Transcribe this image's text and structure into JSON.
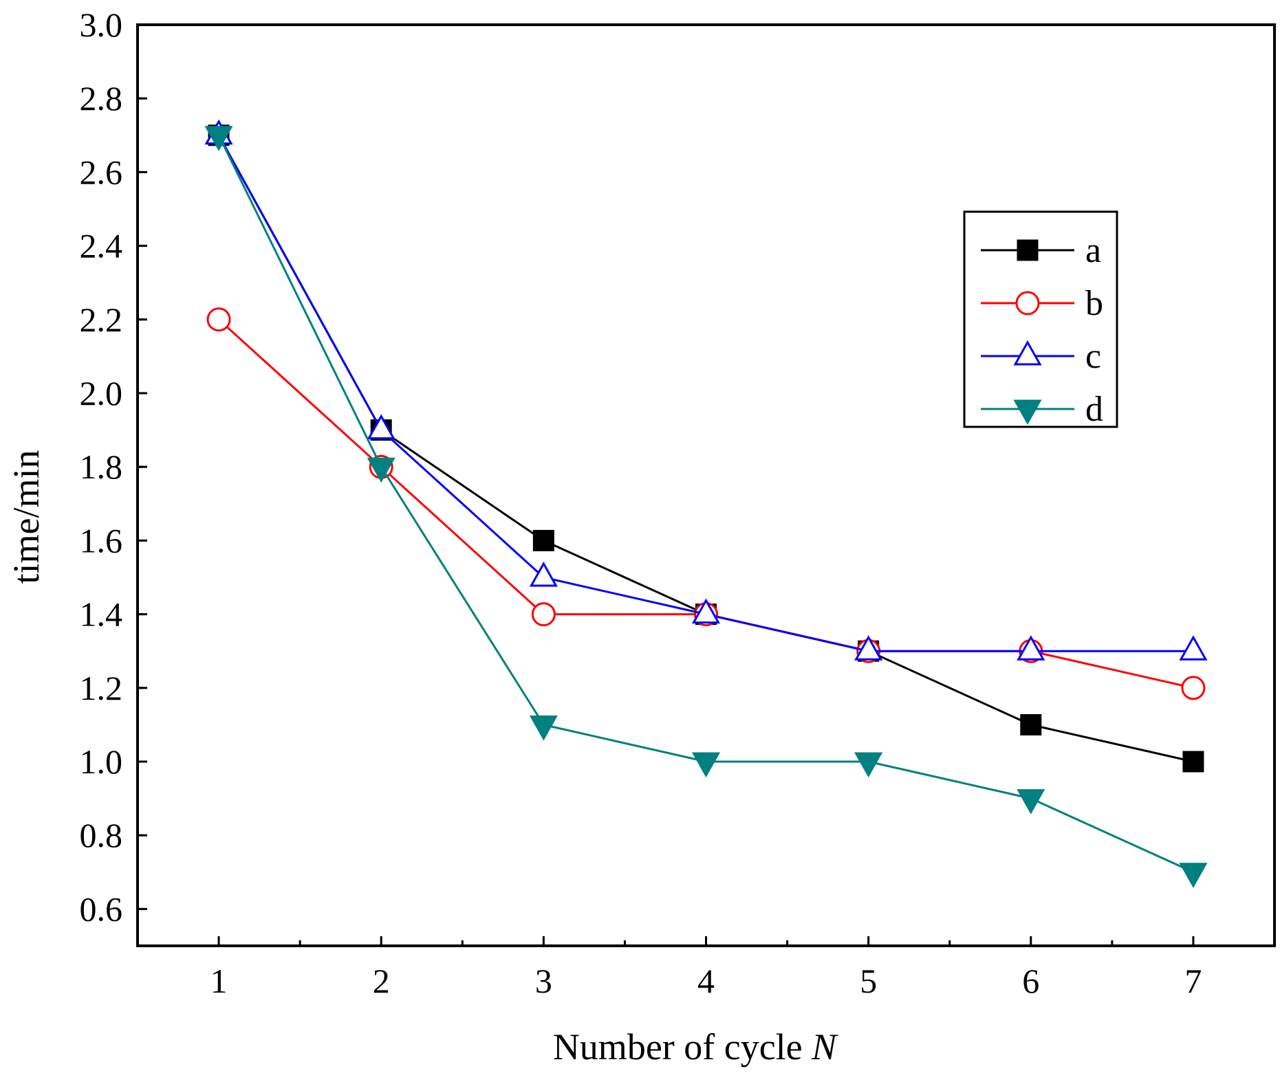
{
  "chart_data": {
    "type": "line",
    "title": "",
    "xlabel_prefix": "Number of cycle ",
    "xlabel_var": "N",
    "ylabel": "time/min",
    "x": [
      1,
      2,
      3,
      4,
      5,
      6,
      7
    ],
    "x_ticks": [
      "1",
      "2",
      "3",
      "4",
      "5",
      "6",
      "7"
    ],
    "xlim": [
      0.5,
      7.5
    ],
    "ylim": [
      0.5,
      3.0
    ],
    "y_ticks": [
      "0.6",
      "0.8",
      "1.0",
      "1.2",
      "1.4",
      "1.6",
      "1.8",
      "2.0",
      "2.2",
      "2.4",
      "2.6",
      "2.8",
      "3.0"
    ],
    "grid": false,
    "legend_position": "top-right",
    "series": [
      {
        "name": "a",
        "color": "#000000",
        "marker": "square-filled",
        "values": [
          2.7,
          1.9,
          1.6,
          1.4,
          1.3,
          1.1,
          1.0
        ]
      },
      {
        "name": "b",
        "color": "#ff0000",
        "marker": "circle-open",
        "values": [
          2.2,
          1.8,
          1.4,
          1.4,
          1.3,
          1.3,
          1.2
        ]
      },
      {
        "name": "c",
        "color": "#0000ff",
        "marker": "triangle-up-open",
        "values": [
          2.7,
          1.9,
          1.5,
          1.4,
          1.3,
          1.3,
          1.3
        ]
      },
      {
        "name": "d",
        "color": "#008080",
        "marker": "triangle-down-filled",
        "values": [
          2.7,
          1.8,
          1.1,
          1.0,
          1.0,
          0.9,
          0.7
        ]
      }
    ]
  }
}
